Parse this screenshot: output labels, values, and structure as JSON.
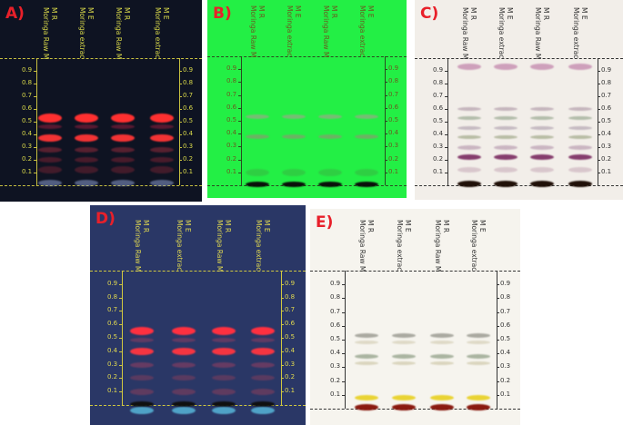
{
  "panels": [
    {
      "label": "A)",
      "lanes": [
        {
          "code": "M R",
          "name": "Moringa Raw M"
        },
        {
          "code": "M E",
          "name": "Moringa extrac"
        },
        {
          "code": "M R",
          "name": "Moringa Raw M"
        },
        {
          "code": "M E",
          "name": "Moringa extrac"
        }
      ],
      "rf_ticks": [
        "0.1",
        "0.2",
        "0.3",
        "0.4",
        "0.5",
        "0.6",
        "0.7",
        "0.8",
        "0.9"
      ]
    },
    {
      "label": "B)",
      "lanes": [
        {
          "code": "M R",
          "name": "Moringa Raw M"
        },
        {
          "code": "M E",
          "name": "Moringa extrac"
        },
        {
          "code": "M R",
          "name": "Moringa Raw M"
        },
        {
          "code": "M E",
          "name": "Moringa extrac"
        }
      ],
      "rf_ticks": [
        "0.1",
        "0.2",
        "0.3",
        "0.4",
        "0.5",
        "0.6",
        "0.7",
        "0.8",
        "0.9"
      ]
    },
    {
      "label": "C)",
      "lanes": [
        {
          "code": "M R",
          "name": "Moringa Raw M"
        },
        {
          "code": "M E",
          "name": "Moringa extrac"
        },
        {
          "code": "M R",
          "name": "Moringa Raw M"
        },
        {
          "code": "M E",
          "name": "Moringa extrac"
        }
      ],
      "rf_ticks": [
        "0.1",
        "0.2",
        "0.3",
        "0.4",
        "0.5",
        "0.6",
        "0.7",
        "0.8",
        "0.9"
      ]
    },
    {
      "label": "D)",
      "lanes": [
        {
          "code": "M R",
          "name": "Moringa Raw M"
        },
        {
          "code": "M E",
          "name": "Moringa extrac"
        },
        {
          "code": "M R",
          "name": "Moringa Raw M"
        },
        {
          "code": "M E",
          "name": "Moringa extrac"
        }
      ],
      "rf_ticks": [
        "0.1",
        "0.2",
        "0.3",
        "0.4",
        "0.5",
        "0.6",
        "0.7",
        "0.8",
        "0.9"
      ]
    },
    {
      "label": "E)",
      "lanes": [
        {
          "code": "M R",
          "name": "Moringa Raw M"
        },
        {
          "code": "M E",
          "name": "Moringa extrac"
        },
        {
          "code": "M R",
          "name": "Moringa Raw M"
        },
        {
          "code": "M E",
          "name": "Moringa extrac"
        }
      ],
      "rf_ticks": [
        "0.1",
        "0.2",
        "0.3",
        "0.4",
        "0.5",
        "0.6",
        "0.7",
        "0.8",
        "0.9"
      ]
    }
  ]
}
